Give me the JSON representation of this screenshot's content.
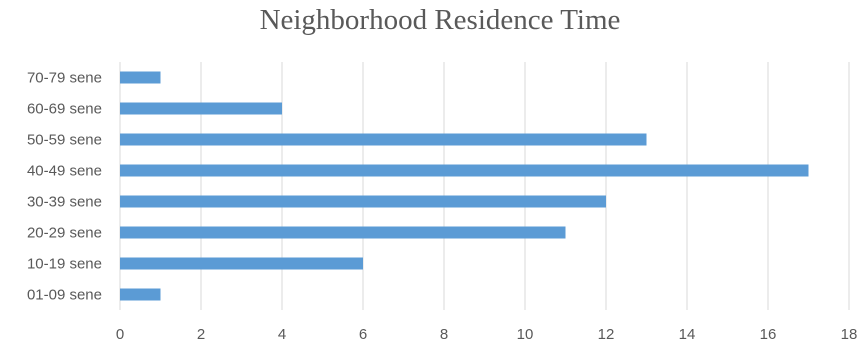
{
  "chart_data": {
    "type": "bar",
    "orientation": "horizontal",
    "title": "Neighborhood Residence Time",
    "xlabel": "",
    "ylabel": "",
    "categories": [
      "01-09 sene",
      "10-19 sene",
      "20-29 sene",
      "30-39 sene",
      "40-49 sene",
      "50-59 sene",
      "60-69 sene",
      "70-79 sene"
    ],
    "values": [
      1,
      6,
      11,
      12,
      17,
      13,
      4,
      1
    ],
    "xlim": [
      0,
      18
    ],
    "xticks": [
      "0",
      "2",
      "4",
      "6",
      "8",
      "10",
      "12",
      "14",
      "16",
      "18"
    ],
    "grid": true,
    "legend": "none",
    "bar_color": "#5b9bd5",
    "grid_color": "#d9d9d9",
    "text_color": "#595959"
  }
}
